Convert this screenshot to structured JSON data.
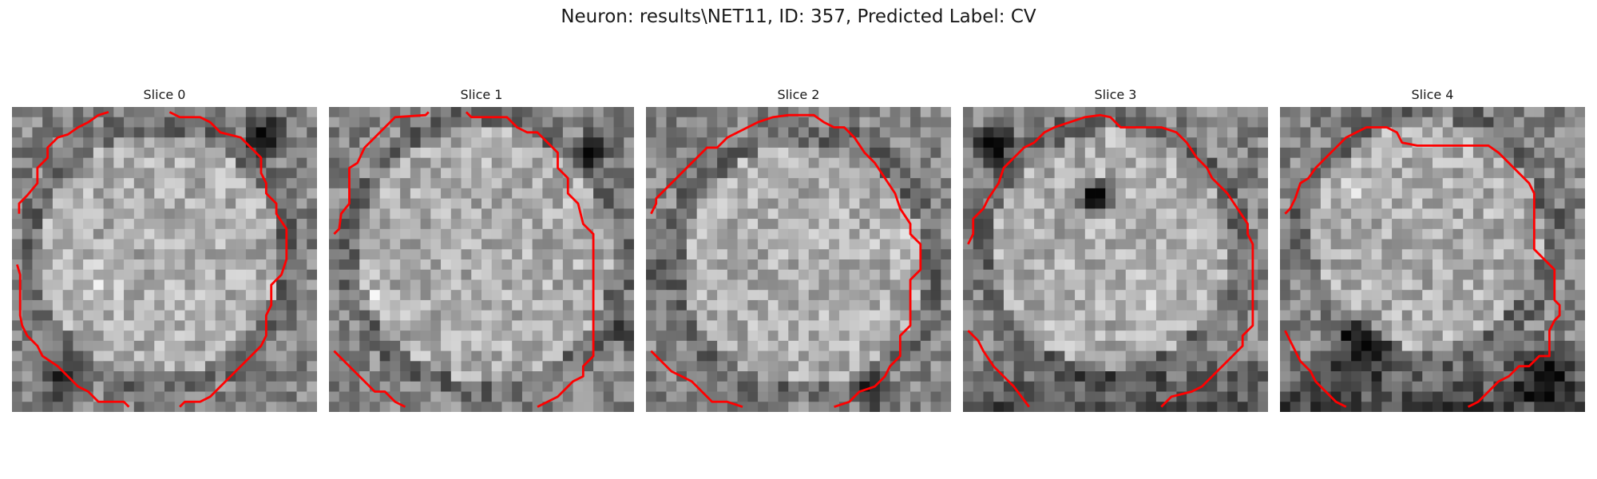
{
  "figure": {
    "title": "Neuron: results\\NET11, ID: 357, Predicted Label: CV"
  },
  "slices": [
    {
      "title": "Slice 0"
    },
    {
      "title": "Slice 1"
    },
    {
      "title": "Slice 2"
    },
    {
      "title": "Slice 3"
    },
    {
      "title": "Slice 4"
    }
  ],
  "colors": {
    "contour": "#ff0000"
  }
}
